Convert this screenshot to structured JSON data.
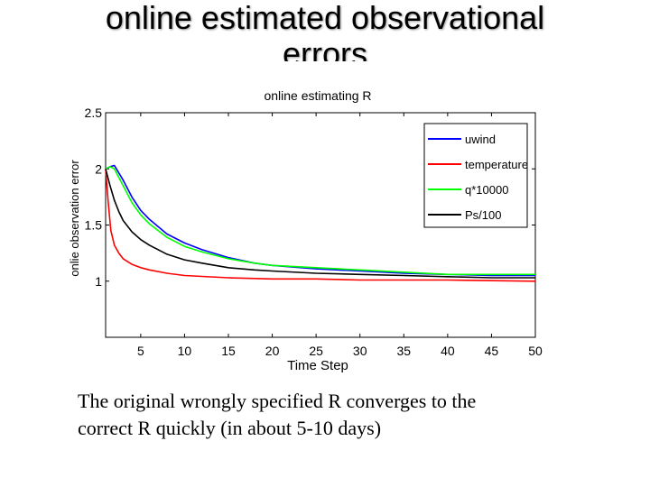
{
  "slide": {
    "title_line1": "online estimated observational",
    "title_line2": "errors",
    "caption_line1": "The original wrongly specified R converges to the",
    "caption_line2": "correct R quickly (in about 5-10 days)"
  },
  "chart_data": {
    "type": "line",
    "title": "online estimating R",
    "xlabel": "Time Step",
    "ylabel": "onlie observation error",
    "xlim": [
      1,
      50
    ],
    "ylim": [
      0.5,
      2.5
    ],
    "xticks": [
      5,
      10,
      15,
      20,
      25,
      30,
      35,
      40,
      45,
      50
    ],
    "yticks": [
      1,
      1.5,
      2,
      2.5
    ],
    "grid": false,
    "legend": "top-right",
    "series": [
      {
        "name": "uwind",
        "color": "#0000ff",
        "x": [
          1,
          1.5,
          2,
          3,
          4,
          5,
          6,
          8,
          10,
          12,
          15,
          18,
          20,
          25,
          30,
          35,
          40,
          45,
          50
        ],
        "values": [
          2.0,
          2.02,
          2.03,
          1.9,
          1.75,
          1.63,
          1.55,
          1.42,
          1.34,
          1.28,
          1.21,
          1.16,
          1.14,
          1.11,
          1.09,
          1.07,
          1.06,
          1.05,
          1.05
        ]
      },
      {
        "name": "temperature",
        "color": "#ff0000",
        "x": [
          1,
          1.3,
          1.6,
          2,
          2.5,
          3,
          4,
          5,
          6,
          8,
          10,
          15,
          20,
          25,
          30,
          40,
          50
        ],
        "values": [
          2.0,
          1.7,
          1.45,
          1.32,
          1.25,
          1.2,
          1.15,
          1.12,
          1.1,
          1.07,
          1.05,
          1.03,
          1.02,
          1.02,
          1.01,
          1.01,
          1.0
        ]
      },
      {
        "name": "q*10000",
        "color": "#00ff00",
        "x": [
          1,
          1.5,
          2,
          3,
          4,
          5,
          6,
          8,
          10,
          12,
          15,
          18,
          20,
          25,
          30,
          35,
          40,
          45,
          50
        ],
        "values": [
          2.0,
          2.02,
          2.0,
          1.85,
          1.7,
          1.59,
          1.51,
          1.39,
          1.31,
          1.26,
          1.2,
          1.16,
          1.14,
          1.12,
          1.1,
          1.08,
          1.06,
          1.06,
          1.06
        ]
      },
      {
        "name": "Ps/100",
        "color": "#000000",
        "x": [
          1,
          1.5,
          2,
          2.5,
          3,
          4,
          5,
          6,
          8,
          10,
          12,
          15,
          18,
          20,
          25,
          30,
          35,
          40,
          45,
          50
        ],
        "values": [
          2.0,
          1.85,
          1.72,
          1.62,
          1.54,
          1.44,
          1.37,
          1.32,
          1.24,
          1.19,
          1.16,
          1.12,
          1.1,
          1.09,
          1.07,
          1.06,
          1.05,
          1.04,
          1.03,
          1.03
        ]
      }
    ]
  }
}
